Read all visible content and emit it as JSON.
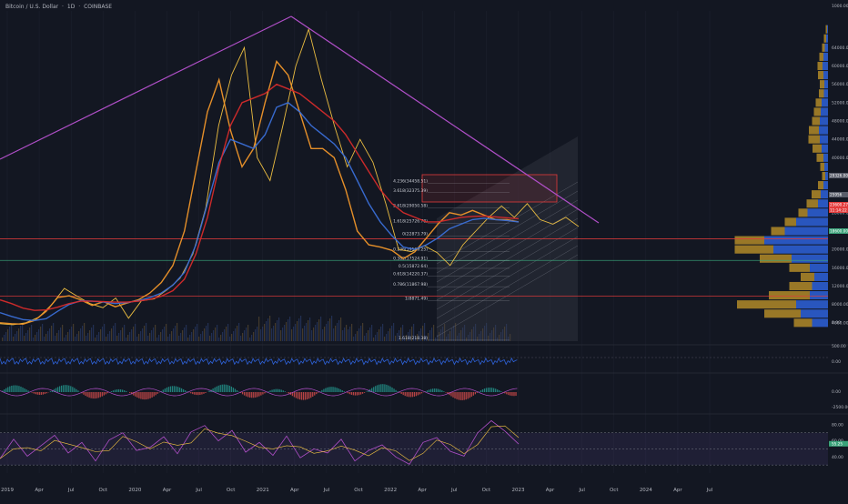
{
  "header": {
    "symbol": "Bitcoin / U.S. Dollar",
    "sep1": "·",
    "interval": "1D",
    "sep2": "·",
    "exchange": "COINBASE"
  },
  "colors": {
    "background": "#131722",
    "price": "#f5c542",
    "ema_fast": "#f0962a",
    "ma_mid": "#3a6fd8",
    "ma_slow": "#d62b2b",
    "trendline": "#b04fc8",
    "fib": "#b2b5be",
    "volume_profile_up": "#2e62d9",
    "volume_profile_down": "#c79a2a",
    "level_green": "#3aa37a",
    "level_red": "#e33b3b"
  },
  "chart_data": [
    {
      "type": "line",
      "title": "",
      "pane": "price",
      "ylim": [
        0,
        72000
      ],
      "x_axis_labels": [
        "2019",
        "Apr",
        "Jul",
        "Oct",
        "2020",
        "Apr",
        "Jul",
        "Oct",
        "2021",
        "Apr",
        "Jul",
        "Oct",
        "2022",
        "Apr",
        "Jul",
        "Oct",
        "2023",
        "Apr",
        "Jul",
        "Oct",
        "2024",
        "Apr",
        "Jul"
      ],
      "y_axis_labels": [
        "1000.00",
        "64000.00",
        "60000.00",
        "56000.00",
        "52000.00",
        "48000.00",
        "44000.00",
        "40000.00",
        "36000.00",
        "32000.00",
        "28000.00",
        "24000.00",
        "20000.00",
        "16000.00",
        "12000.00",
        "8000.00",
        "4000.00",
        "0.00"
      ],
      "series": [
        {
          "key": "price",
          "values": [
            3800,
            3600,
            4000,
            5200,
            7900,
            11500,
            9800,
            8200,
            7300,
            9400,
            5000,
            8800,
            9200,
            11200,
            13700,
            19000,
            29000,
            47000,
            58000,
            64000,
            40000,
            35000,
            47000,
            60000,
            68000,
            57000,
            47000,
            38000,
            44000,
            39000,
            30000,
            20000,
            19500,
            20800,
            19300,
            16500,
            21000,
            24000,
            27000,
            29500,
            27000,
            30000,
            26500,
            25500,
            27000,
            25000
          ]
        },
        {
          "key": "ema_fast",
          "values": [
            4000,
            3800,
            3700,
            4500,
            6500,
            9500,
            9900,
            9000,
            7800,
            8600,
            7500,
            8300,
            9000,
            10500,
            12800,
            16500,
            24000,
            37000,
            50000,
            57000,
            46000,
            38000,
            42000,
            52000,
            61000,
            58000,
            50000,
            42000,
            42000,
            40000,
            33000,
            24000,
            21000,
            20500,
            19800,
            18000,
            19500,
            22500,
            25500,
            28000,
            27500,
            28500,
            27500,
            26500,
            26500,
            26000
          ]
        },
        {
          "key": "ma_mid",
          "values": [
            6200,
            5400,
            4700,
            4500,
            4900,
            6500,
            8000,
            8800,
            8700,
            8500,
            8200,
            8400,
            8800,
            9500,
            10500,
            12200,
            15000,
            21000,
            30000,
            39000,
            44000,
            43000,
            42000,
            45000,
            51000,
            52000,
            50000,
            47000,
            45000,
            43000,
            40000,
            35000,
            30000,
            26000,
            23000,
            20500,
            20000,
            21000,
            22500,
            24500,
            25500,
            26500,
            26800,
            26500,
            26300,
            26000
          ]
        },
        {
          "key": "ma_slow",
          "values": [
            9000,
            8200,
            7200,
            6700,
            6800,
            7400,
            8200,
            8700,
            8700,
            8600,
            8500,
            8500,
            8700,
            9100,
            9800,
            11000,
            13500,
            19000,
            27000,
            38000,
            47000,
            52000,
            53000,
            54000,
            56000,
            55000,
            54000,
            52000,
            50000,
            48000,
            45000,
            41000,
            37000,
            33000,
            30000,
            28000,
            27000,
            26000,
            26000,
            26500,
            27000,
            27200,
            27300,
            27100,
            26900,
            26700
          ]
        }
      ],
      "horizontal_levels": [
        {
          "name": "level_green",
          "value": 17600
        },
        {
          "name": "level_red_top",
          "value": 22300
        },
        {
          "name": "level_red_low",
          "value": 9800
        }
      ],
      "price_tags": [
        "29326.00",
        "25956",
        "23600.27",
        "11:14:22",
        "18600.00"
      ],
      "fibonacci_levels": [
        {
          "label": "4.236(34458.51)",
          "value": 34458.51
        },
        {
          "label": "3.618(32375.39)",
          "value": 32375.39
        },
        {
          "label": "2.618(29050.58)",
          "value": 29050.58
        },
        {
          "label": "1.618(25726.78)",
          "value": 25726.78
        },
        {
          "label": "0(22873.79)",
          "value": 22873.79
        },
        {
          "label": "0.236(19569.25)",
          "value": 19569.25
        },
        {
          "label": "0.382(17524.91)",
          "value": 17524.91
        },
        {
          "label": "0.5(15872.64)",
          "value": 15872.64
        },
        {
          "label": "0.618(14220.37)",
          "value": 14220.37
        },
        {
          "label": "0.786(11867.98)",
          "value": 11867.98
        },
        {
          "label": "1(8871.49)",
          "value": 8871.49
        },
        {
          "label": "1.618(218.38)",
          "value": 218.38
        }
      ],
      "volume_profile": {
        "price_bins": [
          68000,
          66000,
          64000,
          62000,
          60000,
          58000,
          56000,
          54000,
          52000,
          50000,
          48000,
          46000,
          44000,
          42000,
          40000,
          38000,
          36000,
          34000,
          32000,
          30000,
          28000,
          26000,
          24000,
          22000,
          20000,
          18000,
          16000,
          14000,
          12000,
          10000,
          8000,
          6000,
          4000
        ],
        "up": [
          2,
          4,
          7,
          10,
          12,
          10,
          8,
          9,
          14,
          16,
          18,
          20,
          18,
          14,
          10,
          8,
          6,
          10,
          16,
          22,
          45,
          70,
          95,
          140,
          120,
          80,
          40,
          30,
          35,
          40,
          70,
          60,
          35
        ],
        "down": [
          3,
          5,
          6,
          9,
          11,
          12,
          10,
          11,
          13,
          15,
          17,
          22,
          25,
          20,
          15,
          9,
          7,
          12,
          20,
          25,
          20,
          25,
          30,
          65,
          85,
          70,
          45,
          30,
          50,
          90,
          130,
          80,
          40
        ]
      }
    },
    {
      "type": "line",
      "title": "",
      "pane": "indicator_1",
      "ylim": [
        -200,
        700
      ],
      "y_axis_labels": [
        "500.00",
        "0.00"
      ]
    },
    {
      "type": "line",
      "title": "",
      "pane": "indicator_2",
      "ylim": [
        -4000,
        2000
      ],
      "y_axis_labels": [
        "0.00",
        "-2500.00"
      ]
    },
    {
      "type": "line",
      "title": "",
      "pane": "rsi",
      "ylim": [
        20,
        90
      ],
      "y_axis_labels": [
        "80.00",
        "60.00",
        "40.00"
      ],
      "current_tag": "55.25",
      "values": [
        38,
        62,
        41,
        54,
        67,
        45,
        58,
        35,
        61,
        70,
        48,
        52,
        65,
        44,
        71,
        79,
        60,
        73,
        46,
        58,
        42,
        66,
        39,
        50,
        45,
        62,
        35,
        48,
        55,
        40,
        31,
        58,
        64,
        47,
        41,
        70,
        85,
        72,
        56
      ]
    }
  ]
}
